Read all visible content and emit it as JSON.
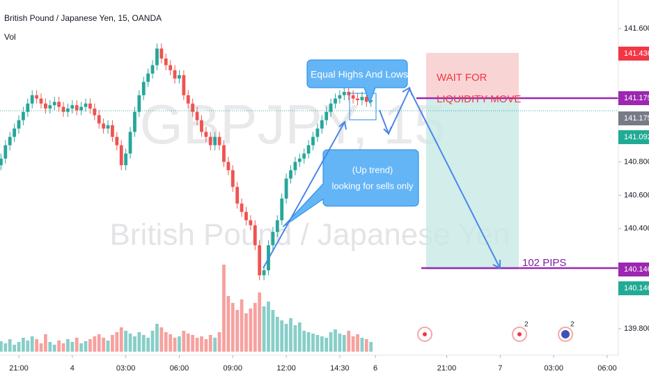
{
  "chart_data": {
    "type": "candlestick",
    "title": "British Pound / Japanese Yen, 15, OANDA",
    "volume_label": "Vol",
    "watermark": "GBPJPY, 15",
    "watermark_subtitle": "British Pound / Japanese Yen",
    "up_color": "#26a69a",
    "down_color": "#ef5350",
    "open": [
      140.78,
      140.82,
      140.9,
      140.95,
      141.0,
      141.05,
      141.1,
      141.15,
      141.2,
      141.18,
      141.15,
      141.12,
      141.14,
      141.16,
      141.13,
      141.1,
      141.12,
      141.14,
      141.11,
      141.13,
      141.15,
      141.12,
      141.08,
      141.03,
      141.0,
      141.02,
      140.95,
      140.9,
      140.78,
      140.85,
      140.98,
      141.1,
      141.2,
      141.28,
      141.33,
      141.38,
      141.48,
      141.42,
      141.38,
      141.35,
      141.3,
      141.32,
      141.2,
      141.15,
      141.1,
      141.05,
      140.98,
      140.95,
      140.9,
      140.95,
      140.9,
      140.8,
      140.75,
      140.65,
      140.55,
      140.5,
      140.45,
      140.42,
      140.3,
      140.12,
      140.15,
      140.3,
      140.38,
      140.45,
      140.58,
      140.7,
      140.75,
      140.8,
      140.82,
      140.85,
      140.9,
      140.95,
      141.0,
      141.05,
      141.1,
      141.15,
      141.18,
      141.2,
      141.22,
      141.2,
      141.18,
      141.17,
      141.19,
      141.16
    ],
    "high": [
      140.85,
      140.93,
      140.98,
      141.03,
      141.08,
      141.13,
      141.18,
      141.23,
      141.23,
      141.21,
      141.18,
      141.17,
      141.19,
      141.19,
      141.16,
      141.15,
      141.17,
      141.17,
      141.16,
      141.18,
      141.18,
      141.15,
      141.11,
      141.06,
      141.05,
      141.05,
      140.98,
      140.93,
      140.88,
      141.01,
      141.13,
      141.23,
      141.31,
      141.36,
      141.41,
      141.51,
      141.51,
      141.45,
      141.41,
      141.38,
      141.35,
      141.35,
      141.23,
      141.18,
      141.13,
      141.08,
      141.01,
      140.98,
      140.98,
      140.98,
      140.93,
      140.83,
      140.78,
      140.68,
      140.58,
      140.53,
      140.48,
      140.45,
      140.33,
      140.18,
      140.33,
      140.41,
      140.48,
      140.61,
      140.73,
      140.78,
      140.83,
      140.85,
      140.88,
      140.93,
      140.98,
      141.03,
      141.08,
      141.13,
      141.18,
      141.21,
      141.23,
      141.25,
      141.25,
      141.23,
      141.21,
      141.22,
      141.22,
      141.2
    ],
    "low": [
      140.75,
      140.79,
      140.87,
      140.92,
      140.97,
      141.02,
      141.07,
      141.12,
      141.15,
      141.12,
      141.09,
      141.09,
      141.11,
      141.1,
      141.07,
      141.07,
      141.09,
      141.08,
      141.08,
      141.1,
      141.09,
      141.05,
      141.0,
      140.97,
      140.97,
      140.92,
      140.87,
      140.75,
      140.75,
      140.82,
      140.95,
      141.07,
      141.17,
      141.25,
      141.3,
      141.35,
      141.39,
      141.35,
      141.32,
      141.27,
      141.27,
      141.17,
      141.12,
      141.07,
      141.02,
      140.95,
      140.92,
      140.87,
      140.87,
      140.87,
      140.77,
      140.72,
      140.62,
      140.52,
      140.47,
      140.42,
      140.39,
      140.27,
      140.09,
      140.09,
      140.12,
      140.27,
      140.35,
      140.42,
      140.55,
      140.67,
      140.72,
      140.77,
      140.79,
      140.82,
      140.87,
      140.92,
      140.97,
      141.02,
      141.07,
      141.12,
      141.15,
      141.17,
      141.17,
      141.15,
      141.14,
      141.14,
      141.13,
      141.13
    ],
    "close": [
      140.82,
      140.9,
      140.95,
      141.0,
      141.05,
      141.1,
      141.15,
      141.2,
      141.18,
      141.15,
      141.12,
      141.14,
      141.16,
      141.13,
      141.1,
      141.12,
      141.14,
      141.11,
      141.13,
      141.15,
      141.12,
      141.08,
      141.03,
      141.0,
      141.02,
      140.95,
      140.9,
      140.78,
      140.85,
      140.98,
      141.1,
      141.2,
      141.28,
      141.33,
      141.38,
      141.48,
      141.42,
      141.38,
      141.35,
      141.3,
      141.32,
      141.2,
      141.15,
      141.1,
      141.05,
      140.98,
      140.95,
      140.9,
      140.95,
      140.9,
      140.8,
      140.75,
      140.65,
      140.55,
      140.5,
      140.45,
      140.42,
      140.3,
      140.12,
      140.15,
      140.3,
      140.38,
      140.45,
      140.58,
      140.7,
      140.75,
      140.8,
      140.82,
      140.85,
      140.9,
      140.95,
      141.0,
      141.05,
      141.1,
      141.15,
      141.18,
      141.2,
      141.22,
      141.2,
      141.18,
      141.17,
      141.19,
      141.16,
      141.17
    ],
    "volume": [
      15,
      12,
      18,
      10,
      14,
      20,
      16,
      22,
      18,
      12,
      25,
      14,
      10,
      16,
      12,
      18,
      14,
      20,
      12,
      15,
      18,
      22,
      25,
      20,
      16,
      24,
      28,
      35,
      30,
      26,
      22,
      28,
      24,
      20,
      30,
      40,
      35,
      28,
      25,
      20,
      22,
      30,
      26,
      24,
      20,
      22,
      18,
      24,
      20,
      28,
      125,
      80,
      70,
      60,
      75,
      55,
      62,
      70,
      85,
      65,
      72,
      60,
      50,
      45,
      40,
      48,
      38,
      42,
      30,
      28,
      26,
      24,
      22,
      20,
      28,
      32,
      26,
      24,
      30,
      22,
      25,
      20,
      18,
      14
    ],
    "vlim": [
      0,
      130
    ],
    "ylim": [
      139.641,
      141.771
    ],
    "yticks": [
      {
        "value": 141.6,
        "label": "141.600"
      },
      {
        "value": 140.8,
        "label": "140.800"
      },
      {
        "value": 140.6,
        "label": "140.600"
      },
      {
        "value": 140.4,
        "label": "140.400"
      },
      {
        "value": 139.8,
        "label": "139.800"
      }
    ],
    "xlim": [
      -0.22,
      138.5
    ],
    "xticks": [
      {
        "value": 4,
        "label": "21:00"
      },
      {
        "value": 16,
        "label": "4"
      },
      {
        "value": 28,
        "label": "03:00"
      },
      {
        "value": 40,
        "label": "06:00"
      },
      {
        "value": 52,
        "label": "09:00"
      },
      {
        "value": 64,
        "label": "12:00"
      },
      {
        "value": 76,
        "label": "14:30"
      },
      {
        "value": 84,
        "label": "6"
      },
      {
        "value": 100,
        "label": "21:00"
      },
      {
        "value": 112,
        "label": "7"
      },
      {
        "value": 124,
        "label": "03:00"
      },
      {
        "value": 136,
        "label": "06:00"
      }
    ],
    "price_labels": [
      {
        "label": "141.436",
        "color": "#f23645"
      },
      {
        "label": "141.175",
        "color": "#9c27b0"
      },
      {
        "label": "141.175",
        "color": "#787b86"
      },
      {
        "label": "141.092",
        "color": "#22ab94"
      },
      {
        "label": "140.146",
        "color": "#9c27b0"
      },
      {
        "label": "140.146",
        "color": "#22ab94"
      }
    ],
    "annotations": {
      "equal": "Equal Highs And Lows",
      "wait": [
        "WAIT FOR",
        "LIQUIDITY MOVE"
      ],
      "trend": [
        "(Up trend)",
        "looking for sells only"
      ],
      "pips": "102 PIPS"
    },
    "events": [
      "2",
      "2"
    ]
  }
}
